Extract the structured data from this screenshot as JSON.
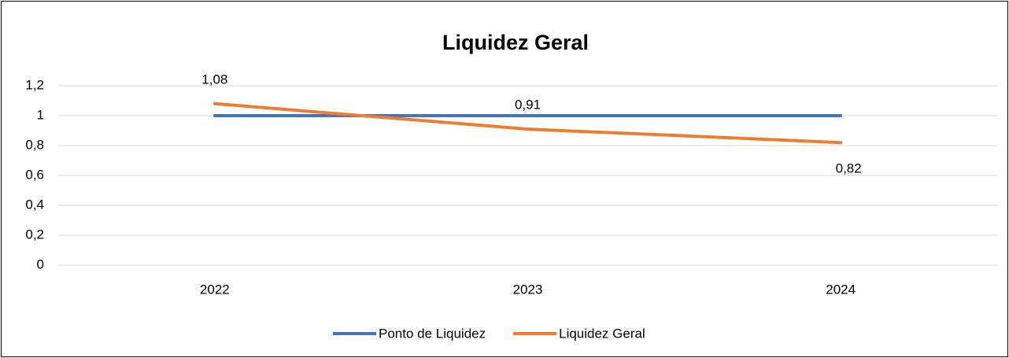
{
  "chart_data": {
    "type": "line",
    "title": "Liquidez Geral",
    "categories": [
      "2022",
      "2023",
      "2024"
    ],
    "series": [
      {
        "name": "Ponto de Liquidez",
        "color": "#4472c4",
        "values": [
          1,
          1,
          1
        ]
      },
      {
        "name": "Liquidez Geral",
        "color": "#ed7d31",
        "values": [
          1.08,
          0.91,
          0.82
        ],
        "value_labels": [
          "1,08",
          "0,91",
          "0,82"
        ]
      }
    ],
    "ylim": [
      0,
      1.2
    ],
    "yticks": [
      0,
      {
        "value": 0.2,
        "label": "0,2"
      },
      {
        "value": 0.4,
        "label": "0,4"
      },
      {
        "value": 0.6,
        "label": "0,6"
      },
      {
        "value": 0.8,
        "label": "0,8"
      },
      1,
      {
        "value": 1.2,
        "label": "1,2"
      }
    ],
    "grid": true,
    "legend": "bottom"
  }
}
